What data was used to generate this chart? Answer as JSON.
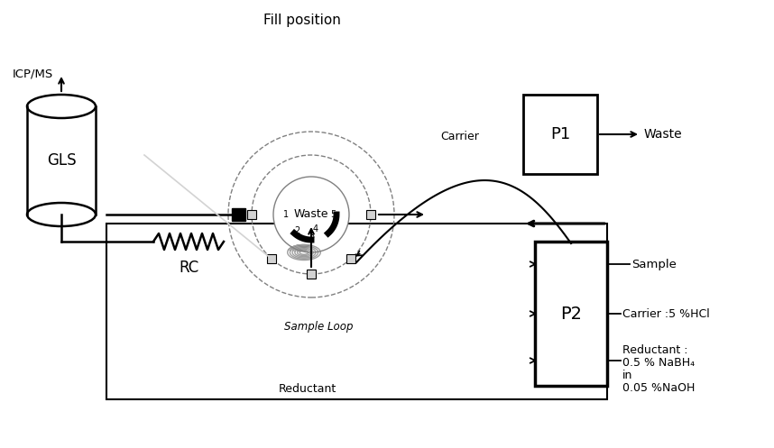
{
  "title": "Fill position",
  "bg": "#ffffff",
  "labels": {
    "icp_ms": "ICP/MS",
    "gls": "GLS",
    "rc": "RC",
    "p1": "P1",
    "p2": "P2",
    "waste_top": "Waste",
    "waste_right": "Waste",
    "carrier": "Carrier",
    "sample": "Sample",
    "carrier_hcl": "Carrier :5 %HCl",
    "reductant_bot": "Reductant",
    "r1": "Reductant :",
    "r2": "0.5 % NaBH₄",
    "r3": "in",
    "r4": "0.05 %NaOH",
    "sample_loop": "Sample Loop"
  }
}
